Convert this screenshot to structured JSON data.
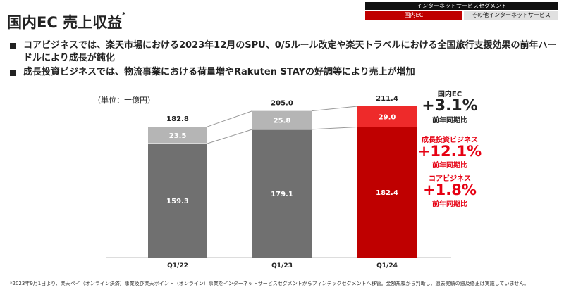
{
  "segment_header": {
    "top": "インターネットサービスセグメント",
    "item_a": "国内EC",
    "item_b": "その他インターネットサービス"
  },
  "title": "国内EC 売上収益",
  "title_mark": "*",
  "bullets": [
    "コアビジネスでは、楽天市場における2023年12月のSPU、0/5ルール改定や楽天トラベルにおける全国旅行支援効果の前年ハードルにより成長が鈍化",
    "成長投資ビジネスでは、物流事業における荷量増やRakuten STAYの好調等により売上が増加"
  ],
  "unit_label": "（単位：十億円）",
  "colors": {
    "core_gray": "#707070",
    "growth_gray": "#b5b5b5",
    "core_red": "#bf0000",
    "growth_red": "#ee2a2a",
    "accent_red": "#e60012"
  },
  "chart_data": {
    "type": "bar",
    "stacked": true,
    "categories": [
      "Q1/22",
      "Q1/23",
      "Q1/24"
    ],
    "series": [
      {
        "name": "コアビジネス",
        "values": [
          159.3,
          179.1,
          182.4
        ]
      },
      {
        "name": "成長投資ビジネス",
        "values": [
          23.5,
          25.8,
          29.0
        ]
      }
    ],
    "totals": [
      "182.8",
      "205.0",
      "211.4"
    ],
    "value_labels": {
      "core": [
        "159.3",
        "179.1",
        "182.4"
      ],
      "growth": [
        "23.5",
        "25.8",
        "29.0"
      ]
    },
    "highlight_category": "Q1/24",
    "ylim": [
      0,
      211.4
    ]
  },
  "growth_panel": [
    {
      "label": "国内EC",
      "value": "+3.1%",
      "sub": "前年同期比",
      "color": "#222222"
    },
    {
      "label": "成長投資ビジネス",
      "value": "+12.1%",
      "sub": "前年同期比",
      "color": "#e60012"
    },
    {
      "label": "コアビジネス",
      "value": "+1.8%",
      "sub": "前年同期比",
      "color": "#e60012"
    }
  ],
  "footnote": "*2023年9月1日より、楽天ペイ（オンライン決済）事業及び楽天ポイント（オンライン）事業をインターネットサービスセグメントからフィンテックセグメントへ移管。金額規模から判断し、過去実績の遡及修正は実施していません。"
}
